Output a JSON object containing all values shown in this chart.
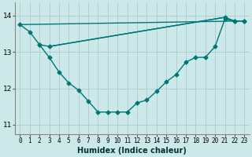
{
  "title": "",
  "xlabel": "Humidex (Indice chaleur)",
  "ylabel": "",
  "bg_color": "#cce8e8",
  "grid_color": "#aacccc",
  "line_color": "#007777",
  "xlim": [
    -0.5,
    23.5
  ],
  "ylim": [
    10.75,
    14.35
  ],
  "xticks": [
    0,
    1,
    2,
    3,
    4,
    5,
    6,
    7,
    8,
    9,
    10,
    11,
    12,
    13,
    14,
    15,
    16,
    17,
    18,
    19,
    20,
    21,
    22,
    23
  ],
  "yticks": [
    11,
    12,
    13,
    14
  ],
  "line1_x": [
    0,
    1,
    2,
    3,
    21,
    22,
    23
  ],
  "line1_y": [
    13.75,
    13.55,
    13.2,
    13.15,
    13.95,
    13.85,
    13.85
  ],
  "line2_x": [
    2,
    3,
    4,
    5,
    6,
    7,
    8,
    9,
    10,
    11,
    12,
    13,
    14,
    15,
    16,
    17,
    18,
    19,
    20,
    21,
    22,
    23
  ],
  "line2_y": [
    13.2,
    12.85,
    12.45,
    12.15,
    11.95,
    11.65,
    11.35,
    11.35,
    11.35,
    11.35,
    11.6,
    11.68,
    11.92,
    12.18,
    12.38,
    12.72,
    12.85,
    12.85,
    13.15,
    13.9,
    13.85,
    13.85
  ],
  "line3_x": [
    0,
    23
  ],
  "line3_y": [
    13.75,
    13.85
  ],
  "line4_x": [
    3,
    21
  ],
  "line4_y": [
    13.15,
    13.95
  ],
  "marker": "D",
  "markersize": 2.5,
  "linewidth": 1.0
}
